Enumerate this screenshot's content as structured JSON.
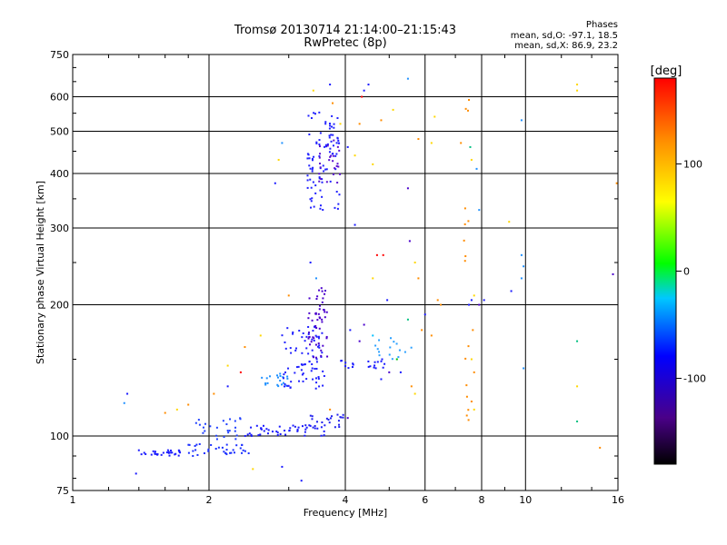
{
  "chart_data": {
    "type": "scatter",
    "title": "Tromsø 20130714 21:14:00–21:15:43",
    "subtitle": "RwPretec (8p)",
    "xlabel": "Frequency [MHz]",
    "ylabel": "Stationary phase Virtual Height [km]",
    "xscale": "log",
    "yscale": "log",
    "xlim": [
      1,
      16
    ],
    "ylim": [
      75,
      750
    ],
    "xticks": [
      1,
      2,
      4,
      6,
      8,
      10,
      16
    ],
    "xtick_labels": [
      "1",
      "2",
      "4",
      "6",
      "8",
      "10",
      "16"
    ],
    "yticks": [
      75,
      100,
      200,
      300,
      400,
      500,
      600,
      750
    ],
    "ytick_labels": [
      "75",
      "100",
      "200",
      "300",
      "400",
      "500",
      "600",
      "750"
    ],
    "grid": true,
    "phases_legend": {
      "title": "Phases",
      "line_o": "mean, sd,O: -97.1, 18.5",
      "line_x": "mean, sd,X: 86.9, 23.2"
    },
    "colorbar": {
      "label": "[deg]",
      "range": [
        -180,
        180
      ],
      "ticks": [
        100,
        0,
        -100
      ],
      "tick_labels": [
        "100",
        "0",
        "-100"
      ],
      "colormap": [
        "#000000",
        "#4a0088",
        "#0000ff",
        "#00c8ff",
        "#00ff00",
        "#ffff00",
        "#ff8c00",
        "#ff0000"
      ]
    },
    "clusters": [
      {
        "f": [
          1.4,
          1.75
        ],
        "h": [
          90,
          93
        ],
        "c": "#1a1aff",
        "n": 30
      },
      {
        "f": [
          1.8,
          2.45
        ],
        "h": [
          90,
          96
        ],
        "c": "#1a2fff",
        "n": 35
      },
      {
        "f": [
          1.85,
          2.35
        ],
        "h": [
          98,
          110
        ],
        "c": "#2040ff",
        "n": 25
      },
      {
        "f": [
          2.4,
          3.6
        ],
        "h": [
          100,
          106
        ],
        "c": "#1a1aff",
        "n": 45
      },
      {
        "f": [
          3.1,
          4.0
        ],
        "h": [
          104,
          112
        ],
        "c": "#2020ee",
        "n": 25
      },
      {
        "f": [
          2.6,
          3.0
        ],
        "h": [
          130,
          140
        ],
        "c": "#1e90ff",
        "n": 20
      },
      {
        "f": [
          2.9,
          3.6
        ],
        "h": [
          128,
          180
        ],
        "c": "#2020ff",
        "n": 80
      },
      {
        "f": [
          3.3,
          3.65
        ],
        "h": [
          150,
          220
        ],
        "c": "#4a00cc",
        "n": 50
      },
      {
        "f": [
          3.9,
          4.9
        ],
        "h": [
          143,
          150
        ],
        "c": "#1a1aff",
        "n": 20
      },
      {
        "f": [
          4.6,
          5.6
        ],
        "h": [
          150,
          168
        ],
        "c": "#2aa0ff",
        "n": 15
      },
      {
        "f": [
          3.3,
          3.9
        ],
        "h": [
          330,
          560
        ],
        "c": "#2020ff",
        "n": 90
      },
      {
        "f": [
          3.5,
          3.9
        ],
        "h": [
          380,
          480
        ],
        "c": "#5a10d0",
        "n": 25
      },
      {
        "f": [
          7.3,
          7.5
        ],
        "h": [
          105,
          600
        ],
        "c": "#ff8c00",
        "n": 15
      }
    ],
    "scatter_points": [
      {
        "x": 1.32,
        "y": 125,
        "c": "#1a1aff"
      },
      {
        "x": 1.3,
        "y": 119,
        "c": "#1e90ff"
      },
      {
        "x": 1.38,
        "y": 82,
        "c": "#1a1aff"
      },
      {
        "x": 1.6,
        "y": 113,
        "c": "#ff8c00"
      },
      {
        "x": 1.7,
        "y": 115,
        "c": "#ffd700"
      },
      {
        "x": 1.8,
        "y": 118,
        "c": "#ff8c00"
      },
      {
        "x": 2.5,
        "y": 84,
        "c": "#ffd700"
      },
      {
        "x": 2.2,
        "y": 130,
        "c": "#1a1aff"
      },
      {
        "x": 2.05,
        "y": 125,
        "c": "#ff8c00"
      },
      {
        "x": 2.4,
        "y": 160,
        "c": "#ff8c00"
      },
      {
        "x": 2.6,
        "y": 170,
        "c": "#ffd700"
      },
      {
        "x": 3.2,
        "y": 79,
        "c": "#1a1aff"
      },
      {
        "x": 3.35,
        "y": 250,
        "c": "#1a1aff"
      },
      {
        "x": 3.45,
        "y": 230,
        "c": "#1e90ff"
      },
      {
        "x": 3.0,
        "y": 210,
        "c": "#ff8c00"
      },
      {
        "x": 2.9,
        "y": 470,
        "c": "#1e90ff"
      },
      {
        "x": 2.85,
        "y": 430,
        "c": "#ffd700"
      },
      {
        "x": 2.8,
        "y": 380,
        "c": "#1a1aff"
      },
      {
        "x": 3.4,
        "y": 620,
        "c": "#ffd700"
      },
      {
        "x": 3.7,
        "y": 640,
        "c": "#1a1aff"
      },
      {
        "x": 3.9,
        "y": 520,
        "c": "#ffd700"
      },
      {
        "x": 3.75,
        "y": 580,
        "c": "#ff8c00"
      },
      {
        "x": 4.35,
        "y": 600,
        "c": "#ff0000"
      },
      {
        "x": 4.5,
        "y": 640,
        "c": "#1a1aff"
      },
      {
        "x": 4.4,
        "y": 620,
        "c": "#1a1aff"
      },
      {
        "x": 4.3,
        "y": 520,
        "c": "#ff8c00"
      },
      {
        "x": 4.8,
        "y": 530,
        "c": "#ff8c00"
      },
      {
        "x": 5.1,
        "y": 560,
        "c": "#ffd700"
      },
      {
        "x": 5.5,
        "y": 660,
        "c": "#1e90ff"
      },
      {
        "x": 4.2,
        "y": 440,
        "c": "#ffd700"
      },
      {
        "x": 4.05,
        "y": 460,
        "c": "#1a1aff"
      },
      {
        "x": 4.6,
        "y": 420,
        "c": "#ffd700"
      },
      {
        "x": 5.5,
        "y": 370,
        "c": "#4a00cc"
      },
      {
        "x": 5.8,
        "y": 480,
        "c": "#ff8c00"
      },
      {
        "x": 6.2,
        "y": 470,
        "c": "#ffd700"
      },
      {
        "x": 6.3,
        "y": 540,
        "c": "#ffd700"
      },
      {
        "x": 7.2,
        "y": 470,
        "c": "#ff8c00"
      },
      {
        "x": 7.55,
        "y": 460,
        "c": "#00c080"
      },
      {
        "x": 7.5,
        "y": 590,
        "c": "#ff8c00"
      },
      {
        "x": 7.6,
        "y": 430,
        "c": "#ffd700"
      },
      {
        "x": 7.8,
        "y": 410,
        "c": "#1e90ff"
      },
      {
        "x": 7.9,
        "y": 330,
        "c": "#1e90ff"
      },
      {
        "x": 9.2,
        "y": 310,
        "c": "#ffd700"
      },
      {
        "x": 9.8,
        "y": 530,
        "c": "#1e90ff"
      },
      {
        "x": 13.0,
        "y": 640,
        "c": "#ffd700"
      },
      {
        "x": 13.0,
        "y": 620,
        "c": "#ffd700"
      },
      {
        "x": 15.9,
        "y": 380,
        "c": "#ff8c00"
      },
      {
        "x": 4.2,
        "y": 305,
        "c": "#1a1aff"
      },
      {
        "x": 4.7,
        "y": 260,
        "c": "#ff0000"
      },
      {
        "x": 4.85,
        "y": 260,
        "c": "#ff0000"
      },
      {
        "x": 5.55,
        "y": 280,
        "c": "#4a00cc"
      },
      {
        "x": 5.7,
        "y": 250,
        "c": "#ffd700"
      },
      {
        "x": 5.8,
        "y": 230,
        "c": "#ff8c00"
      },
      {
        "x": 6.4,
        "y": 205,
        "c": "#ff8c00"
      },
      {
        "x": 6.5,
        "y": 200,
        "c": "#ff8c00"
      },
      {
        "x": 6.0,
        "y": 190,
        "c": "#1a1aff"
      },
      {
        "x": 5.9,
        "y": 175,
        "c": "#ff8c00"
      },
      {
        "x": 6.2,
        "y": 170,
        "c": "#ff8c00"
      },
      {
        "x": 7.6,
        "y": 205,
        "c": "#1a1aff"
      },
      {
        "x": 7.7,
        "y": 210,
        "c": "#ffd700"
      },
      {
        "x": 7.5,
        "y": 200,
        "c": "#1a1aff"
      },
      {
        "x": 7.9,
        "y": 200,
        "c": "#4a00cc"
      },
      {
        "x": 8.1,
        "y": 205,
        "c": "#1a1aff"
      },
      {
        "x": 9.3,
        "y": 215,
        "c": "#1a1aff"
      },
      {
        "x": 9.8,
        "y": 230,
        "c": "#1e90ff"
      },
      {
        "x": 9.8,
        "y": 260,
        "c": "#1e90ff"
      },
      {
        "x": 9.9,
        "y": 245,
        "c": "#1e90ff"
      },
      {
        "x": 13.0,
        "y": 165,
        "c": "#00c080"
      },
      {
        "x": 13.0,
        "y": 130,
        "c": "#ffd700"
      },
      {
        "x": 13.0,
        "y": 108,
        "c": "#00c080"
      },
      {
        "x": 14.6,
        "y": 94,
        "c": "#ff8c00"
      },
      {
        "x": 15.6,
        "y": 235,
        "c": "#4a00cc"
      },
      {
        "x": 9.9,
        "y": 143,
        "c": "#1e90ff"
      },
      {
        "x": 7.6,
        "y": 150,
        "c": "#ffd700"
      },
      {
        "x": 7.7,
        "y": 140,
        "c": "#ff8c00"
      },
      {
        "x": 7.65,
        "y": 175,
        "c": "#ff8c00"
      },
      {
        "x": 7.6,
        "y": 120,
        "c": "#ff8c00"
      },
      {
        "x": 7.7,
        "y": 115,
        "c": "#ffd700"
      },
      {
        "x": 5.2,
        "y": 150,
        "c": "#00c000"
      },
      {
        "x": 5.3,
        "y": 140,
        "c": "#1a1aff"
      },
      {
        "x": 5.6,
        "y": 130,
        "c": "#ff8c00"
      },
      {
        "x": 5.7,
        "y": 125,
        "c": "#ffd700"
      },
      {
        "x": 5.0,
        "y": 140,
        "c": "#4a00cc"
      },
      {
        "x": 4.8,
        "y": 135,
        "c": "#1a1aff"
      },
      {
        "x": 4.6,
        "y": 170,
        "c": "#00c0ff"
      },
      {
        "x": 4.3,
        "y": 165,
        "c": "#4a00cc"
      },
      {
        "x": 4.1,
        "y": 175,
        "c": "#1a1aff"
      },
      {
        "x": 4.4,
        "y": 180,
        "c": "#4a00cc"
      },
      {
        "x": 5.5,
        "y": 185,
        "c": "#00c080"
      },
      {
        "x": 4.6,
        "y": 230,
        "c": "#ffd700"
      },
      {
        "x": 4.95,
        "y": 205,
        "c": "#1a1aff"
      },
      {
        "x": 3.7,
        "y": 115,
        "c": "#ff8c00"
      },
      {
        "x": 4.05,
        "y": 110,
        "c": "#4a00cc"
      },
      {
        "x": 2.35,
        "y": 140,
        "c": "#ff0000"
      },
      {
        "x": 2.2,
        "y": 145,
        "c": "#ffd700"
      },
      {
        "x": 2.9,
        "y": 85,
        "c": "#1a1aff"
      }
    ]
  }
}
